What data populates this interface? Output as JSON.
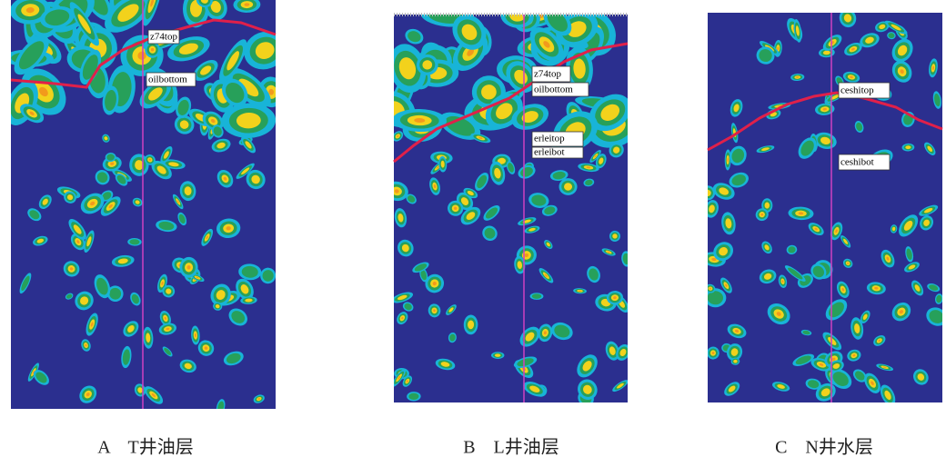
{
  "panels": [
    {
      "caption": "A　T井油层",
      "labels": [
        "z74top",
        "oilbottom"
      ]
    },
    {
      "caption": "B　L井油层",
      "labels": [
        "z74top",
        "oilbottom",
        "erleitop",
        "erleibot"
      ]
    },
    {
      "caption": "C　N井水层",
      "labels": [
        "ceshitop",
        "ceshibot"
      ]
    }
  ]
}
